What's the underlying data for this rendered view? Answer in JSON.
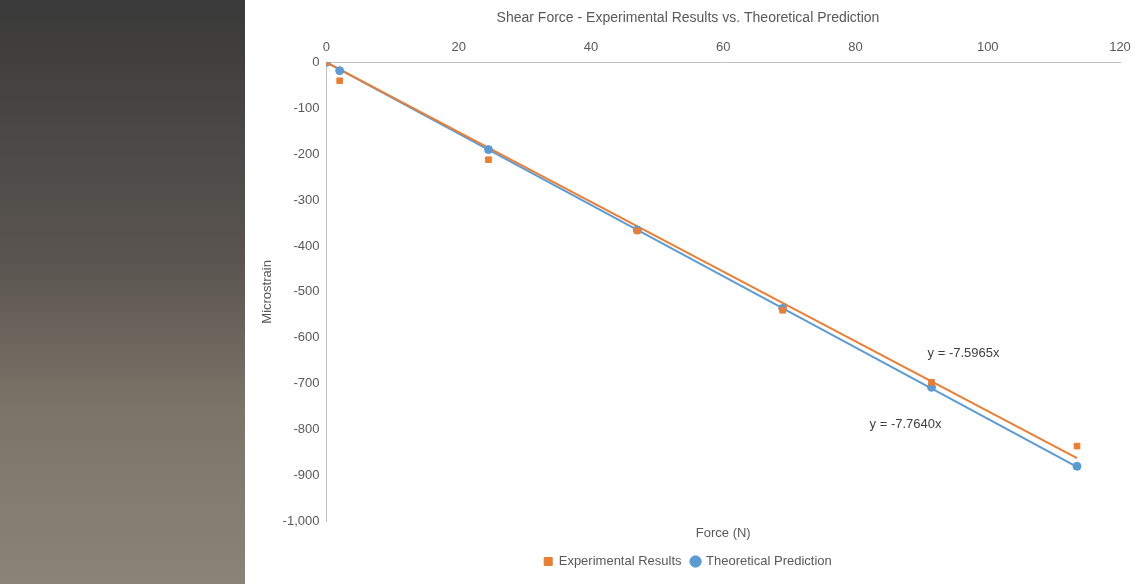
{
  "chart_data": {
    "type": "scatter",
    "title": "Shear Force - Experimental Results vs. Theoretical Prediction",
    "x_label": "Force (N)",
    "y_label": "Microstrain",
    "x": [
      0,
      2,
      24.5,
      47,
      69,
      91.5,
      113.5
    ],
    "series": [
      {
        "name": "Experimental Results",
        "color": "#ed7d31",
        "marker": "square",
        "values": [
          0,
          -40,
          -212,
          -367,
          -540,
          -697,
          -836
        ],
        "trendline": {
          "slope": -7.5965,
          "label": "y = -7.5965x"
        }
      },
      {
        "name": "Theoretical Prediction",
        "color": "#5b9bd5",
        "marker": "circle",
        "values": [
          0,
          -18,
          -190,
          -365,
          -536,
          -708,
          -880
        ],
        "trendline": {
          "slope": -7.764,
          "label": "y = -7.7640x"
        }
      }
    ],
    "xlim": [
      0,
      120
    ],
    "xticks": [
      0,
      20,
      40,
      60,
      80,
      100,
      120
    ],
    "ylim": [
      -1000,
      0
    ],
    "yticks": [
      -1000,
      -900,
      -800,
      -700,
      -600,
      -500,
      -400,
      -300,
      -200,
      -100,
      0
    ],
    "grid": false,
    "legend": "bottom"
  }
}
